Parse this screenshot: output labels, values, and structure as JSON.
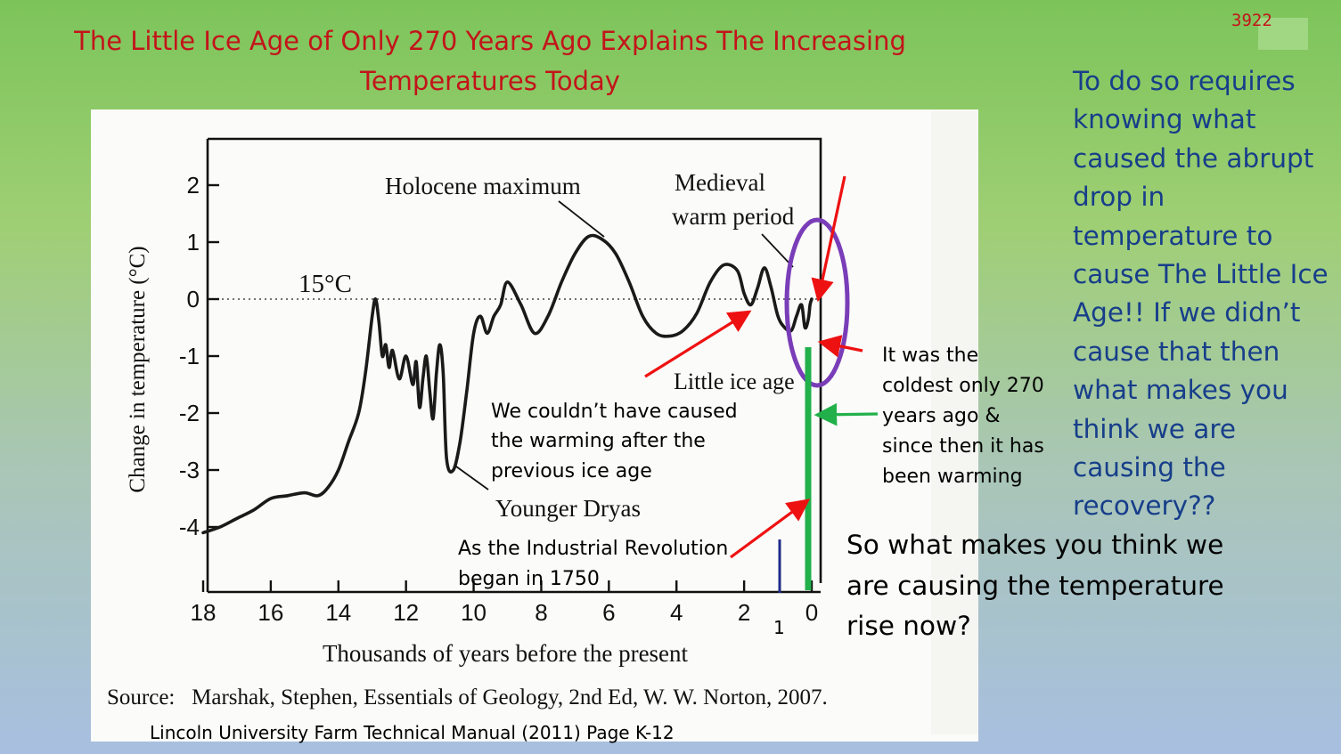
{
  "slide": {
    "number": "3922",
    "title_lines": [
      "The Little Ice Age of Only 270 Years Ago Explains The Increasing",
      "Temperatures Today"
    ],
    "side_text_lines": [
      "To do so requires",
      "knowing what",
      "caused the abrupt",
      "drop in",
      "temperature to",
      "cause The Little Ice",
      "Age!! If we didn’t",
      "cause that then",
      "what makes you",
      "think we are",
      "causing the",
      "recovery??"
    ],
    "bottom_question_lines": [
      "So what makes you think we",
      "are causing the temperature",
      "rise now?"
    ],
    "annotation_warming_lines": [
      "We couldn’t have caused",
      "the warming after the",
      "previous ice age"
    ],
    "annotation_coldest_lines": [
      "It was the",
      "coldest only 270",
      "years ago &",
      "since then it has",
      "been warming"
    ],
    "annotation_industrial_lines": [
      "As the Industrial Revolution",
      "began in 1750"
    ],
    "marker_1_label": "1",
    "source_line": "Source:   Marshak, Stephen, Essentials of Geology, 2nd Ed, W. W. Norton, 2007.",
    "credit_line": "Lincoln University Farm Technical Manual (2011) Page K-12",
    "colors": {
      "title": "#c3141a",
      "side_text": "#173e8a",
      "arrow": "#ee1111",
      "green_bar": "#22b04b",
      "ellipse": "#7a3db8",
      "marker": "#1f2b8a"
    }
  },
  "chart_data": {
    "type": "line",
    "xlabel": "Thousands of years before the present",
    "ylabel": "Change in temperature (°C)",
    "x_ticks": [
      18,
      16,
      14,
      12,
      10,
      8,
      6,
      4,
      2,
      0
    ],
    "y_ticks": [
      2,
      1,
      0,
      -1,
      -2,
      -3,
      -4
    ],
    "xlim": [
      18,
      0
    ],
    "ylim": [
      -4.5,
      2.5
    ],
    "reference_line": {
      "y": 0,
      "label": "15°C"
    },
    "annotations": [
      "Holocene maximum",
      "Medieval warm period",
      "Little ice age",
      "Younger Dryas"
    ],
    "series": [
      {
        "x": [
          18,
          17.5,
          17.0,
          16.5,
          16.0,
          15.5,
          15.0,
          14.6,
          14.3,
          14.0,
          13.7,
          13.4,
          13.2,
          13.0,
          12.9,
          12.8,
          12.7,
          12.6,
          12.5,
          12.4,
          12.2,
          12.0,
          11.8,
          11.7,
          11.6,
          11.5,
          11.4,
          11.3,
          11.2,
          11.1,
          11.0,
          10.9,
          10.8,
          10.6,
          10.4,
          10.2,
          10.0,
          9.8,
          9.6,
          9.4,
          9.2,
          9.0,
          8.6,
          8.2,
          7.8,
          7.4,
          7.0,
          6.6,
          6.2,
          5.8,
          5.4,
          5.0,
          4.6,
          4.2,
          3.8,
          3.4,
          3.0,
          2.6,
          2.2,
          2.0,
          1.8,
          1.6,
          1.4,
          1.2,
          1.0,
          0.8,
          0.6,
          0.45,
          0.3,
          0.2,
          0.1,
          0.05,
          0.0
        ],
        "y": [
          -4.1,
          -4.0,
          -3.85,
          -3.7,
          -3.5,
          -3.45,
          -3.4,
          -3.45,
          -3.3,
          -3.0,
          -2.5,
          -2.0,
          -1.3,
          -0.3,
          0.0,
          -0.4,
          -1.0,
          -0.8,
          -1.2,
          -0.9,
          -1.4,
          -1.0,
          -1.5,
          -1.1,
          -1.9,
          -1.4,
          -1.0,
          -1.6,
          -2.1,
          -1.3,
          -0.8,
          -1.3,
          -2.8,
          -3.0,
          -2.5,
          -1.6,
          -0.6,
          -0.3,
          -0.6,
          -0.3,
          -0.1,
          0.3,
          -0.1,
          -0.6,
          -0.3,
          0.3,
          0.8,
          1.1,
          1.05,
          0.8,
          0.3,
          -0.3,
          -0.6,
          -0.65,
          -0.55,
          -0.25,
          0.3,
          0.6,
          0.5,
          0.1,
          -0.1,
          0.2,
          0.55,
          0.2,
          -0.3,
          -0.5,
          -0.55,
          -0.3,
          -0.1,
          -0.5,
          -0.35,
          -0.1,
          0.0
        ]
      }
    ]
  }
}
